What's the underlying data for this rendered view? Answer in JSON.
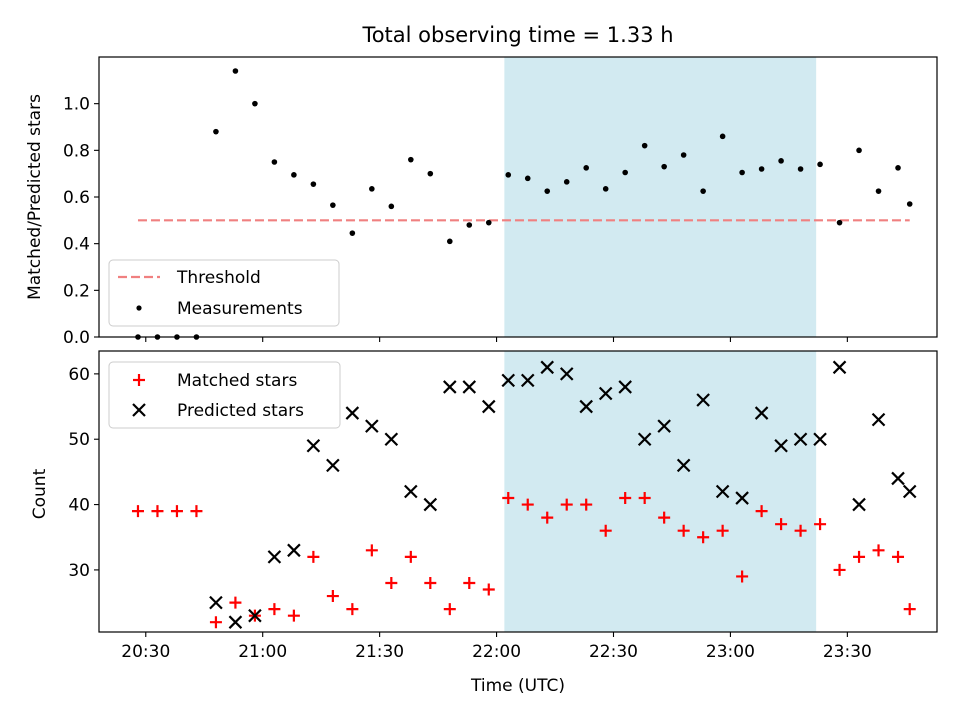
{
  "figure": {
    "title": "Total observing time = 1.33 h"
  },
  "chart_data": [
    {
      "type": "scatter",
      "ylabel": "Matched/Predicted stars",
      "ylim": [
        0,
        1.2
      ],
      "y_ticks": [
        "0.0",
        "0.2",
        "0.4",
        "0.6",
        "0.8",
        "1.0"
      ],
      "highlight": {
        "start": "22:02",
        "end": "23:22",
        "color": "#add8e6"
      },
      "legend": {
        "placement": "lower-left",
        "entries": [
          "Threshold",
          "Measurements"
        ]
      },
      "threshold": {
        "name": "Threshold",
        "y": 0.5,
        "x_start": "20:28",
        "x_end": "23:46",
        "color": "#f08080"
      },
      "series": [
        {
          "name": "Measurements",
          "color": "#000000",
          "points": [
            [
              "20:28",
              0.0
            ],
            [
              "20:33",
              0.0
            ],
            [
              "20:38",
              0.0
            ],
            [
              "20:43",
              0.0
            ],
            [
              "20:48",
              0.88
            ],
            [
              "20:53",
              1.14
            ],
            [
              "20:58",
              1.0
            ],
            [
              "21:03",
              0.75
            ],
            [
              "21:08",
              0.695
            ],
            [
              "21:13",
              0.655
            ],
            [
              "21:18",
              0.565
            ],
            [
              "21:23",
              0.445
            ],
            [
              "21:28",
              0.635
            ],
            [
              "21:33",
              0.56
            ],
            [
              "21:38",
              0.76
            ],
            [
              "21:43",
              0.7
            ],
            [
              "21:48",
              0.41
            ],
            [
              "21:53",
              0.48
            ],
            [
              "21:58",
              0.49
            ],
            [
              "22:03",
              0.695
            ],
            [
              "22:08",
              0.68
            ],
            [
              "22:13",
              0.625
            ],
            [
              "22:18",
              0.665
            ],
            [
              "22:23",
              0.725
            ],
            [
              "22:28",
              0.635
            ],
            [
              "22:33",
              0.705
            ],
            [
              "22:38",
              0.82
            ],
            [
              "22:43",
              0.73
            ],
            [
              "22:48",
              0.78
            ],
            [
              "22:53",
              0.625
            ],
            [
              "22:58",
              0.86
            ],
            [
              "23:03",
              0.705
            ],
            [
              "23:08",
              0.72
            ],
            [
              "23:13",
              0.755
            ],
            [
              "23:18",
              0.72
            ],
            [
              "23:23",
              0.74
            ],
            [
              "23:28",
              0.49
            ],
            [
              "23:33",
              0.8
            ],
            [
              "23:38",
              0.625
            ],
            [
              "23:43",
              0.725
            ],
            [
              "23:46",
              0.57
            ]
          ]
        }
      ]
    },
    {
      "type": "scatter",
      "xlabel": "Time (UTC)",
      "ylabel": "Count",
      "ylim": [
        20.5,
        63.5
      ],
      "y_ticks": [
        "30",
        "40",
        "50",
        "60"
      ],
      "x_ticks": [
        "20:30",
        "21:00",
        "21:30",
        "22:00",
        "22:30",
        "23:00",
        "23:30"
      ],
      "highlight": {
        "start": "22:02",
        "end": "23:22",
        "color": "#add8e6"
      },
      "legend": {
        "placement": "top-left",
        "entries": [
          "Matched stars",
          "Predicted stars"
        ]
      },
      "series": [
        {
          "name": "Matched stars",
          "color": "#ff0000",
          "marker": "plus",
          "points": [
            [
              "20:28",
              39
            ],
            [
              "20:33",
              39
            ],
            [
              "20:38",
              39
            ],
            [
              "20:43",
              39
            ],
            [
              "20:48",
              22
            ],
            [
              "20:53",
              25
            ],
            [
              "20:58",
              23
            ],
            [
              "21:03",
              24
            ],
            [
              "21:08",
              23
            ],
            [
              "21:13",
              32
            ],
            [
              "21:18",
              26
            ],
            [
              "21:23",
              24
            ],
            [
              "21:28",
              33
            ],
            [
              "21:33",
              28
            ],
            [
              "21:38",
              32
            ],
            [
              "21:43",
              28
            ],
            [
              "21:48",
              24
            ],
            [
              "21:53",
              28
            ],
            [
              "21:58",
              27
            ],
            [
              "22:03",
              41
            ],
            [
              "22:08",
              40
            ],
            [
              "22:13",
              38
            ],
            [
              "22:18",
              40
            ],
            [
              "22:23",
              40
            ],
            [
              "22:28",
              36
            ],
            [
              "22:33",
              41
            ],
            [
              "22:38",
              41
            ],
            [
              "22:43",
              38
            ],
            [
              "22:48",
              36
            ],
            [
              "22:53",
              35
            ],
            [
              "22:58",
              36
            ],
            [
              "23:03",
              29
            ],
            [
              "23:08",
              39
            ],
            [
              "23:13",
              37
            ],
            [
              "23:18",
              36
            ],
            [
              "23:23",
              37
            ],
            [
              "23:28",
              30
            ],
            [
              "23:33",
              32
            ],
            [
              "23:38",
              33
            ],
            [
              "23:43",
              32
            ],
            [
              "23:46",
              24
            ]
          ]
        },
        {
          "name": "Predicted stars",
          "color": "#000000",
          "marker": "x",
          "points": [
            [
              "20:48",
              25
            ],
            [
              "20:53",
              22
            ],
            [
              "20:58",
              23
            ],
            [
              "21:03",
              32
            ],
            [
              "21:08",
              33
            ],
            [
              "21:13",
              49
            ],
            [
              "21:18",
              46
            ],
            [
              "21:23",
              54
            ],
            [
              "21:28",
              52
            ],
            [
              "21:33",
              50
            ],
            [
              "21:38",
              42
            ],
            [
              "21:43",
              40
            ],
            [
              "21:48",
              58
            ],
            [
              "21:53",
              58
            ],
            [
              "21:58",
              55
            ],
            [
              "22:03",
              59
            ],
            [
              "22:08",
              59
            ],
            [
              "22:13",
              61
            ],
            [
              "22:18",
              60
            ],
            [
              "22:23",
              55
            ],
            [
              "22:28",
              57
            ],
            [
              "22:33",
              58
            ],
            [
              "22:38",
              50
            ],
            [
              "22:43",
              52
            ],
            [
              "22:48",
              46
            ],
            [
              "22:53",
              56
            ],
            [
              "22:58",
              42
            ],
            [
              "23:03",
              41
            ],
            [
              "23:08",
              54
            ],
            [
              "23:13",
              49
            ],
            [
              "23:18",
              50
            ],
            [
              "23:23",
              50
            ],
            [
              "23:28",
              61
            ],
            [
              "23:33",
              40
            ],
            [
              "23:38",
              53
            ],
            [
              "23:43",
              44
            ],
            [
              "23:46",
              42
            ]
          ]
        }
      ]
    }
  ]
}
